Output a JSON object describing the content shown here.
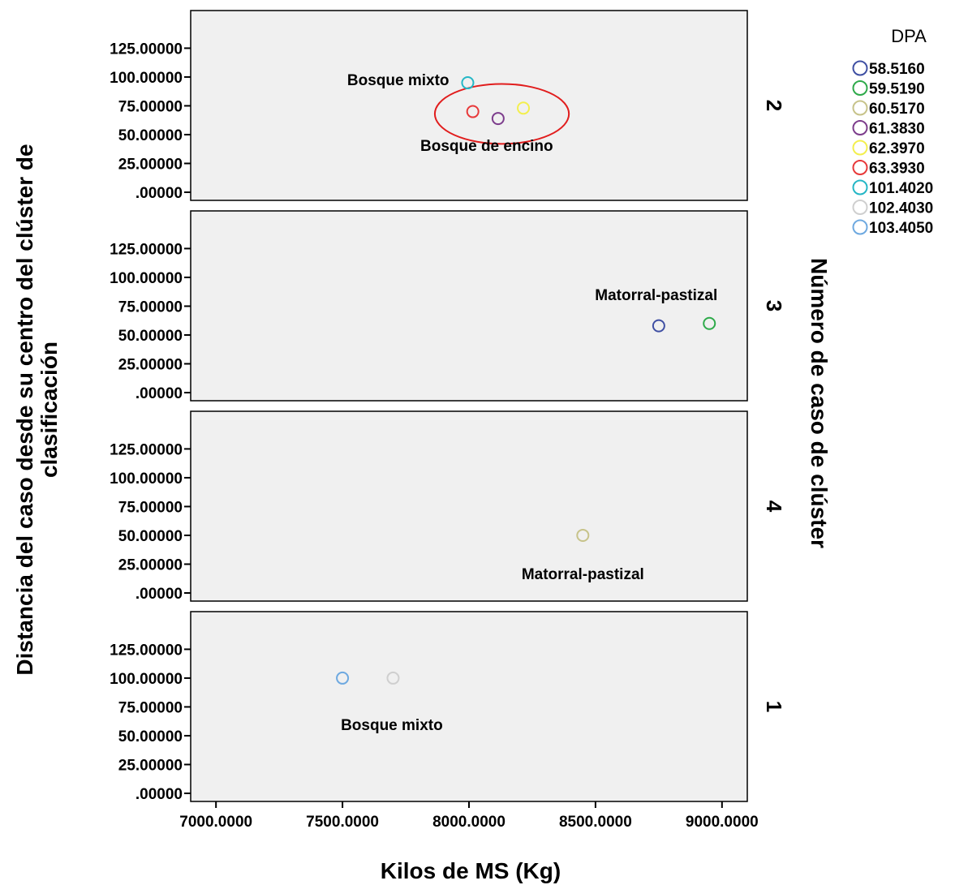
{
  "chart_data": {
    "type": "scatter",
    "xlabel": "Kilos de MS (Kg)",
    "ylabel_lines": [
      "Distancia del caso desde su centro del clúster de",
      "clasificación"
    ],
    "right_label": "Número de caso de clúster",
    "xlim": [
      6900,
      9100
    ],
    "ylim": [
      0,
      145
    ],
    "x_ticks": [
      7000,
      7500,
      8000,
      8500,
      9000
    ],
    "x_tick_labels": [
      "7000.0000",
      "7500.0000",
      "8000.0000",
      "8500.0000",
      "9000.0000"
    ],
    "y_ticks": [
      0,
      25,
      50,
      75,
      100,
      125
    ],
    "y_tick_labels": [
      ".00000",
      "25.00000",
      "50.00000",
      "75.00000",
      "100.00000",
      "125.00000"
    ],
    "panel_background": "#f0f0f0",
    "legend": {
      "title": "DPA",
      "placement": "top-right",
      "entries": [
        {
          "label": "58.5160",
          "color": "#3f4fa3"
        },
        {
          "label": "59.5190",
          "color": "#2eaa4a"
        },
        {
          "label": "60.5170",
          "color": "#c7c38a"
        },
        {
          "label": "61.3830",
          "color": "#7d3d8c"
        },
        {
          "label": "62.3970",
          "color": "#f3ef4e"
        },
        {
          "label": "63.3930",
          "color": "#e8393a"
        },
        {
          "label": "101.4020",
          "color": "#25b7c6"
        },
        {
          "label": "102.4030",
          "color": "#cfcfcf"
        },
        {
          "label": "103.4050",
          "color": "#6ea9e0"
        }
      ]
    },
    "panels": [
      {
        "cluster": "2",
        "points": [
          {
            "x": 7995,
            "y": 95,
            "dpa": "101.4020"
          },
          {
            "x": 8015,
            "y": 70,
            "dpa": "63.3930"
          },
          {
            "x": 8115,
            "y": 64,
            "dpa": "61.3830"
          },
          {
            "x": 8215,
            "y": 73,
            "dpa": "62.3970"
          }
        ],
        "annotations": [
          {
            "text": "Bosque mixto",
            "x": 7720,
            "y": 98
          },
          {
            "text": "Bosque de encino",
            "x": 8070,
            "y": 41
          }
        ],
        "highlight_ellipse": {
          "cx": 8130,
          "cy": 68,
          "rx": 265,
          "ry": 26,
          "color": "#e11d1d"
        }
      },
      {
        "cluster": "3",
        "points": [
          {
            "x": 8750,
            "y": 58,
            "dpa": "58.5160"
          },
          {
            "x": 8950,
            "y": 60,
            "dpa": "59.5190"
          }
        ],
        "annotations": [
          {
            "text": "Matorral-pastizal",
            "x": 8740,
            "y": 85
          }
        ]
      },
      {
        "cluster": "4",
        "points": [
          {
            "x": 8450,
            "y": 50,
            "dpa": "60.5170"
          }
        ],
        "annotations": [
          {
            "text": "Matorral-pastizal",
            "x": 8450,
            "y": 17
          }
        ]
      },
      {
        "cluster": "1",
        "points": [
          {
            "x": 7500,
            "y": 100,
            "dpa": "103.4050"
          },
          {
            "x": 7700,
            "y": 100,
            "dpa": "102.4030"
          }
        ],
        "annotations": [
          {
            "text": "Bosque mixto",
            "x": 7695,
            "y": 60
          }
        ]
      }
    ]
  }
}
